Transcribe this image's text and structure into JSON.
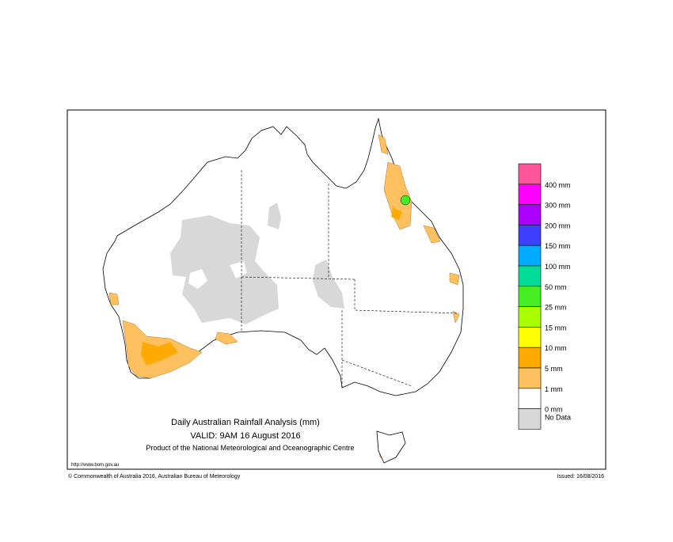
{
  "map": {
    "title": "Daily Australian Rainfall Analysis (mm)",
    "valid": "VALID: 9AM 16 August 2016",
    "product": "Product of the National Meteorological and Oceanographic Centre",
    "url": "http://www.bom.gov.au"
  },
  "footer": {
    "copyright": "© Commonwealth of Australia 2016, Australian Bureau of Meteorology",
    "issued": "Issued: 16/08/2016"
  },
  "legend": {
    "items": [
      {
        "label": "400 mm",
        "color": "#ff5599"
      },
      {
        "label": "300 mm",
        "color": "#ff00ff"
      },
      {
        "label": "200 mm",
        "color": "#aa00ff"
      },
      {
        "label": "150 mm",
        "color": "#3f3fff"
      },
      {
        "label": "100 mm",
        "color": "#00aaff"
      },
      {
        "label": "50 mm",
        "color": "#00dd99"
      },
      {
        "label": "25 mm",
        "color": "#44ee22"
      },
      {
        "label": "15 mm",
        "color": "#aaff00"
      },
      {
        "label": "10 mm",
        "color": "#ffff00"
      },
      {
        "label": "5 mm",
        "color": "#ffaa00"
      },
      {
        "label": "1 mm",
        "color": "#ffc060"
      },
      {
        "label": "0 mm",
        "color": "#ffffff"
      },
      {
        "label": "No Data",
        "color": "#d8d8d8"
      }
    ]
  }
}
